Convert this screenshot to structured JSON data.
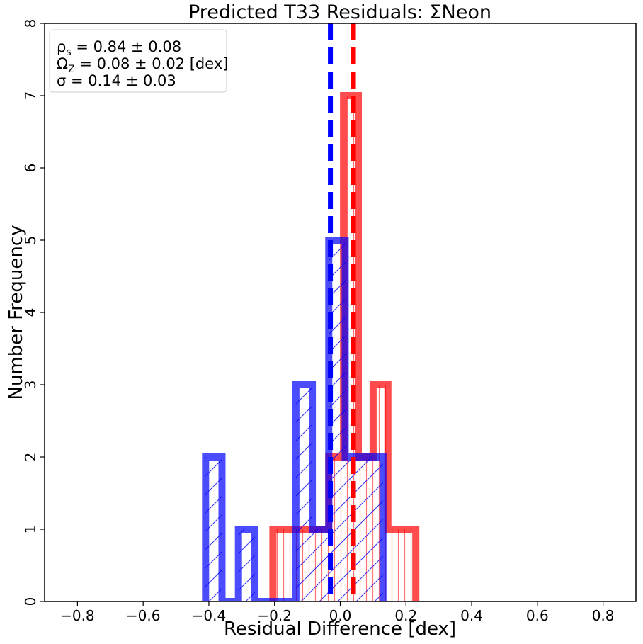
{
  "chart_data": {
    "type": "histogram",
    "title": "Predicted T33 Residuals: ΣNeon",
    "xlabel": "Residual Difference [dex]",
    "ylabel": "Number Frequency",
    "xlim": [
      -0.9,
      0.9
    ],
    "ylim": [
      0,
      8
    ],
    "xticks": [
      -0.8,
      -0.6,
      -0.4,
      -0.2,
      0.0,
      0.2,
      0.4,
      0.6,
      0.8
    ],
    "xtick_labels": [
      "−0.8",
      "−0.6",
      "−0.4",
      "−0.2",
      "0.0",
      "0.2",
      "0.4",
      "0.6",
      "0.8"
    ],
    "yticks": [
      0,
      1,
      2,
      3,
      4,
      5,
      6,
      7,
      8
    ],
    "ytick_labels": [
      "0",
      "1",
      "2",
      "3",
      "4",
      "5",
      "6",
      "7",
      "8"
    ],
    "grid": false,
    "series": [
      {
        "color": "#ff0000",
        "hatch": "vertical-lines",
        "bins": [
          {
            "x0": -0.205,
            "x1": -0.12,
            "count": 1
          },
          {
            "x0": -0.12,
            "x1": -0.035,
            "count": 1
          },
          {
            "x0": -0.035,
            "x1": 0.01,
            "count": 2
          },
          {
            "x0": 0.01,
            "x1": 0.055,
            "count": 7
          },
          {
            "x0": 0.055,
            "x1": 0.1,
            "count": 2
          },
          {
            "x0": 0.1,
            "x1": 0.145,
            "count": 3
          },
          {
            "x0": 0.145,
            "x1": 0.23,
            "count": 1
          }
        ],
        "vline": 0.04
      },
      {
        "color": "#0000ff",
        "hatch": "diagonal-lines",
        "bins": [
          {
            "x0": -0.41,
            "x1": -0.36,
            "count": 2
          },
          {
            "x0": -0.36,
            "x1": -0.31,
            "count": 0
          },
          {
            "x0": -0.31,
            "x1": -0.26,
            "count": 1
          },
          {
            "x0": -0.26,
            "x1": -0.21,
            "count": 0
          },
          {
            "x0": -0.21,
            "x1": -0.135,
            "count": 0
          },
          {
            "x0": -0.135,
            "x1": -0.085,
            "count": 3
          },
          {
            "x0": -0.085,
            "x1": -0.035,
            "count": 1
          },
          {
            "x0": -0.035,
            "x1": 0.015,
            "count": 5
          },
          {
            "x0": 0.015,
            "x1": 0.13,
            "count": 2
          }
        ],
        "vline": -0.03
      }
    ],
    "legend": {
      "location": "top-left",
      "lines": [
        {
          "sym": "ρ",
          "sub": "s",
          "text": " = 0.84 ± 0.08"
        },
        {
          "sym": "Ω",
          "sub": "Z",
          "text": " = 0.08 ± 0.02 [dex]"
        },
        {
          "sym": "σ",
          "sub": "",
          "text": " = 0.14 ± 0.03"
        }
      ]
    }
  }
}
